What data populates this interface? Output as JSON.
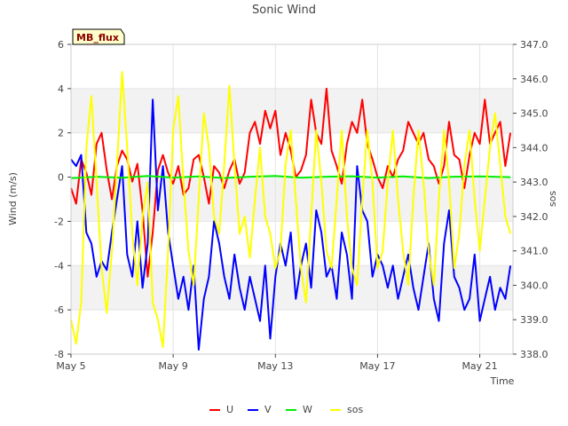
{
  "chart_data": {
    "type": "line",
    "title": "Sonic Wind",
    "xlabel": "Time",
    "ylabel": "Wind (m/s)",
    "y2label": "sos",
    "annotation": "MB_flux",
    "xlim": [
      5,
      22.3
    ],
    "ylim": [
      -8,
      6
    ],
    "y2lim": [
      338,
      347
    ],
    "x_ticks": [
      {
        "value": 5,
        "label": "May 5"
      },
      {
        "value": 9,
        "label": "May 9"
      },
      {
        "value": 13,
        "label": "May 13"
      },
      {
        "value": 17,
        "label": "May 17"
      },
      {
        "value": 21,
        "label": "May 21"
      }
    ],
    "y_ticks": [
      {
        "value": -8,
        "label": "-8"
      },
      {
        "value": -6,
        "label": "-6"
      },
      {
        "value": -4,
        "label": "-4"
      },
      {
        "value": -2,
        "label": "-2"
      },
      {
        "value": 0,
        "label": "0"
      },
      {
        "value": 2,
        "label": "2"
      },
      {
        "value": 4,
        "label": "4"
      },
      {
        "value": 6,
        "label": "6"
      }
    ],
    "y2_ticks": [
      {
        "value": 338,
        "label": "338.0"
      },
      {
        "value": 339,
        "label": "339.0"
      },
      {
        "value": 340,
        "label": "340.0"
      },
      {
        "value": 341,
        "label": "341.0"
      },
      {
        "value": 342,
        "label": "342.0"
      },
      {
        "value": 343,
        "label": "343.0"
      },
      {
        "value": 344,
        "label": "344.0"
      },
      {
        "value": 345,
        "label": "345.0"
      },
      {
        "value": 346,
        "label": "346.0"
      },
      {
        "value": 347,
        "label": "347.0"
      }
    ],
    "bands": [
      [
        -6,
        -4
      ],
      [
        -2,
        0
      ],
      [
        2,
        4
      ]
    ],
    "legend_position": "bottom",
    "series": [
      {
        "name": "U",
        "axis": "left",
        "color": "#ff0000",
        "x": [
          5.0,
          5.2,
          5.4,
          5.6,
          5.8,
          6.0,
          6.2,
          6.4,
          6.6,
          6.8,
          7.0,
          7.2,
          7.4,
          7.6,
          7.8,
          8.0,
          8.2,
          8.4,
          8.6,
          8.8,
          9.0,
          9.2,
          9.4,
          9.6,
          9.8,
          10.0,
          10.2,
          10.4,
          10.6,
          10.8,
          11.0,
          11.2,
          11.4,
          11.6,
          11.8,
          12.0,
          12.2,
          12.4,
          12.6,
          12.8,
          13.0,
          13.2,
          13.4,
          13.6,
          13.8,
          14.0,
          14.2,
          14.4,
          14.6,
          14.8,
          15.0,
          15.2,
          15.4,
          15.6,
          15.8,
          16.0,
          16.2,
          16.4,
          16.6,
          16.8,
          17.0,
          17.2,
          17.4,
          17.6,
          17.8,
          18.0,
          18.2,
          18.4,
          18.6,
          18.8,
          19.0,
          19.2,
          19.4,
          19.6,
          19.8,
          20.0,
          20.2,
          20.4,
          20.6,
          20.8,
          21.0,
          21.2,
          21.4,
          21.6,
          21.8,
          22.0,
          22.2
        ],
        "y": [
          -0.5,
          -1.2,
          0.8,
          0.2,
          -0.8,
          1.5,
          2.0,
          0.3,
          -1.0,
          0.5,
          1.2,
          0.8,
          -0.2,
          0.6,
          -1.5,
          -4.5,
          -2.5,
          0.3,
          1.0,
          0.2,
          -0.3,
          0.5,
          -0.8,
          -0.5,
          0.8,
          1.0,
          0.0,
          -1.2,
          0.5,
          0.2,
          -0.5,
          0.3,
          0.8,
          -0.3,
          0.2,
          2.0,
          2.5,
          1.5,
          3.0,
          2.2,
          3.0,
          1.0,
          2.0,
          1.2,
          0.0,
          0.3,
          1.0,
          3.5,
          2.0,
          1.5,
          4.0,
          1.2,
          0.5,
          -0.3,
          1.5,
          2.5,
          2.0,
          3.5,
          1.5,
          0.8,
          0.0,
          -0.5,
          0.5,
          0.0,
          0.8,
          1.2,
          2.5,
          2.0,
          1.5,
          2.0,
          0.8,
          0.5,
          -0.3,
          0.5,
          2.5,
          1.0,
          0.8,
          -0.5,
          1.0,
          2.0,
          1.5,
          3.5,
          1.5,
          2.0,
          2.5,
          0.5,
          2.0
        ]
      },
      {
        "name": "V",
        "axis": "left",
        "color": "#0000ff",
        "x": [
          5.0,
          5.2,
          5.4,
          5.6,
          5.8,
          6.0,
          6.2,
          6.4,
          6.6,
          6.8,
          7.0,
          7.2,
          7.4,
          7.6,
          7.8,
          8.0,
          8.2,
          8.4,
          8.6,
          8.8,
          9.0,
          9.2,
          9.4,
          9.6,
          9.8,
          10.0,
          10.2,
          10.4,
          10.6,
          10.8,
          11.0,
          11.2,
          11.4,
          11.6,
          11.8,
          12.0,
          12.2,
          12.4,
          12.6,
          12.8,
          13.0,
          13.2,
          13.4,
          13.6,
          13.8,
          14.0,
          14.2,
          14.4,
          14.6,
          14.8,
          15.0,
          15.2,
          15.4,
          15.6,
          15.8,
          16.0,
          16.2,
          16.4,
          16.6,
          16.8,
          17.0,
          17.2,
          17.4,
          17.6,
          17.8,
          18.0,
          18.2,
          18.4,
          18.6,
          18.8,
          19.0,
          19.2,
          19.4,
          19.6,
          19.8,
          20.0,
          20.2,
          20.4,
          20.6,
          20.8,
          21.0,
          21.2,
          21.4,
          21.6,
          21.8,
          22.0,
          22.2
        ],
        "y": [
          0.8,
          0.5,
          1.0,
          -2.5,
          -3.0,
          -4.5,
          -3.8,
          -4.2,
          -2.5,
          -1.0,
          0.5,
          -3.5,
          -4.5,
          -2.0,
          -5.0,
          -3.0,
          3.5,
          -1.5,
          0.5,
          -2.5,
          -4.0,
          -5.5,
          -4.5,
          -6.0,
          -4.0,
          -7.8,
          -5.5,
          -4.5,
          -2.0,
          -3.0,
          -4.5,
          -5.5,
          -3.5,
          -5.0,
          -6.0,
          -4.5,
          -5.5,
          -6.5,
          -4.0,
          -7.3,
          -4.5,
          -3.0,
          -4.0,
          -2.5,
          -5.5,
          -4.0,
          -3.0,
          -5.0,
          -1.5,
          -2.5,
          -4.5,
          -4.0,
          -5.5,
          -2.5,
          -3.5,
          -5.5,
          0.5,
          -1.5,
          -2.0,
          -4.5,
          -3.5,
          -4.0,
          -5.0,
          -4.0,
          -5.5,
          -4.5,
          -3.5,
          -5.0,
          -6.0,
          -4.5,
          -3.0,
          -5.5,
          -6.5,
          -3.0,
          -1.5,
          -4.5,
          -5.0,
          -6.0,
          -5.5,
          -3.5,
          -6.5,
          -5.5,
          -4.5,
          -6.0,
          -5.0,
          -5.5,
          -4.0
        ]
      },
      {
        "name": "W",
        "axis": "left",
        "color": "#00ee00",
        "x": [
          5.0,
          6.0,
          7.0,
          8.0,
          9.0,
          10.0,
          11.0,
          12.0,
          13.0,
          14.0,
          15.0,
          16.0,
          17.0,
          18.0,
          19.0,
          20.0,
          21.0,
          22.2
        ],
        "y": [
          -0.05,
          0.02,
          -0.03,
          0.05,
          -0.02,
          0.03,
          -0.04,
          0.02,
          0.05,
          -0.03,
          0.02,
          0.04,
          -0.02,
          0.03,
          -0.04,
          0.02,
          0.03,
          0.0
        ]
      },
      {
        "name": "sos",
        "axis": "right",
        "color": "#ffff00",
        "x": [
          5.0,
          5.2,
          5.4,
          5.6,
          5.8,
          6.0,
          6.2,
          6.4,
          6.6,
          6.8,
          7.0,
          7.2,
          7.4,
          7.6,
          7.8,
          8.0,
          8.2,
          8.4,
          8.6,
          8.8,
          9.0,
          9.2,
          9.4,
          9.6,
          9.8,
          10.0,
          10.2,
          10.4,
          10.6,
          10.8,
          11.0,
          11.2,
          11.4,
          11.6,
          11.8,
          12.0,
          12.2,
          12.4,
          12.6,
          12.8,
          13.0,
          13.2,
          13.4,
          13.6,
          13.8,
          14.0,
          14.2,
          14.4,
          14.6,
          14.8,
          15.0,
          15.2,
          15.4,
          15.6,
          15.8,
          16.0,
          16.2,
          16.4,
          16.6,
          16.8,
          17.0,
          17.2,
          17.4,
          17.6,
          17.8,
          18.0,
          18.2,
          18.4,
          18.6,
          18.8,
          19.0,
          19.2,
          19.4,
          19.6,
          19.8,
          20.0,
          20.2,
          20.4,
          20.6,
          20.8,
          21.0,
          21.2,
          21.4,
          21.6,
          21.8,
          22.0,
          22.2
        ],
        "y": [
          339.0,
          338.3,
          339.5,
          344.0,
          345.5,
          343.0,
          340.5,
          339.2,
          341.0,
          343.5,
          346.2,
          344.0,
          341.5,
          340.0,
          342.0,
          343.0,
          339.5,
          339.0,
          338.2,
          341.0,
          344.5,
          345.5,
          343.0,
          341.0,
          340.0,
          342.5,
          345.0,
          344.0,
          342.0,
          341.5,
          343.5,
          345.8,
          343.5,
          341.5,
          342.0,
          340.8,
          342.5,
          344.0,
          342.0,
          341.5,
          340.5,
          341.0,
          343.5,
          344.5,
          342.5,
          340.5,
          339.5,
          342.0,
          344.5,
          343.0,
          341.0,
          340.5,
          342.5,
          344.5,
          342.0,
          340.5,
          340.0,
          342.5,
          344.5,
          343.0,
          340.5,
          341.0,
          343.0,
          344.5,
          342.5,
          341.0,
          340.0,
          342.5,
          344.5,
          343.0,
          341.0,
          340.0,
          342.5,
          344.5,
          343.0,
          340.5,
          341.5,
          343.5,
          344.5,
          342.5,
          341.0,
          342.5,
          344.0,
          345.0,
          343.5,
          342.0,
          341.5
        ]
      }
    ]
  }
}
